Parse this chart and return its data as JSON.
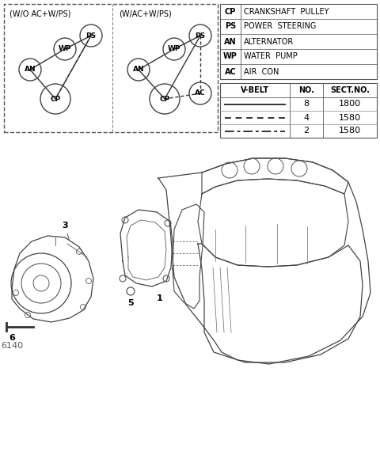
{
  "bg_color": "#ffffff",
  "legend_abbrevs": [
    [
      "CP",
      "CRANKSHAFT  PULLEY"
    ],
    [
      "PS",
      "POWER  STEERING"
    ],
    [
      "AN",
      "ALTERNATOR"
    ],
    [
      "WP",
      "WATER  PUMP"
    ],
    [
      "AC",
      "AIR  CON"
    ]
  ],
  "vbelt_rows": [
    [
      "solid",
      "8",
      "1800"
    ],
    [
      "dashed",
      "4",
      "1580"
    ],
    [
      "dashdot",
      "2",
      "1580"
    ]
  ],
  "diagram1_title": "(W/O AC+W/PS)",
  "diagram2_title": "(W/AC+W/PS)"
}
